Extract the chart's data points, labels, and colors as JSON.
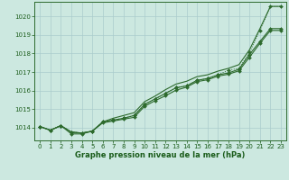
{
  "x": [
    0,
    1,
    2,
    3,
    4,
    5,
    6,
    7,
    8,
    9,
    10,
    11,
    12,
    13,
    14,
    15,
    16,
    17,
    18,
    19,
    20,
    21,
    22,
    23
  ],
  "series_upper": [
    1014.05,
    1013.85,
    1014.1,
    1013.75,
    1013.7,
    1013.8,
    1014.3,
    1014.5,
    1014.65,
    1014.8,
    1015.4,
    1015.7,
    1016.05,
    1016.35,
    1016.5,
    1016.75,
    1016.85,
    1017.05,
    1017.2,
    1017.4,
    1018.2,
    1019.35,
    1020.55,
    1020.55
  ],
  "series_mid_marked": [
    1014.05,
    1013.85,
    1014.1,
    1013.75,
    1013.7,
    1013.8,
    1014.3,
    1014.4,
    1014.5,
    1014.65,
    1015.25,
    1015.55,
    1015.85,
    1016.15,
    1016.25,
    1016.55,
    1016.65,
    1016.85,
    1016.95,
    1017.15,
    1017.95,
    1018.65,
    1019.35,
    1019.35
  ],
  "series_low_marked": [
    1014.05,
    1013.85,
    1014.1,
    1013.65,
    1013.65,
    1013.8,
    1014.25,
    1014.35,
    1014.45,
    1014.55,
    1015.15,
    1015.45,
    1015.72,
    1016.02,
    1016.18,
    1016.48,
    1016.58,
    1016.78,
    1016.88,
    1017.07,
    1017.8,
    1018.55,
    1019.25,
    1019.25
  ],
  "series_dotted": [
    1014.05,
    1013.85,
    1014.1,
    1013.75,
    1013.7,
    1013.8,
    1014.3,
    1014.4,
    1014.5,
    1014.65,
    1015.25,
    1015.55,
    1015.85,
    1016.15,
    1016.25,
    1016.55,
    1016.65,
    1016.85,
    1017.1,
    1017.2,
    1018.05,
    1019.25,
    1020.55,
    1020.55
  ],
  "line_color": "#2d6a2d",
  "bg_color": "#cce8e0",
  "grid_color": "#aacccc",
  "text_color": "#1a5c1a",
  "xlabel": "Graphe pression niveau de la mer (hPa)",
  "ylim_min": 1013.3,
  "ylim_max": 1020.8,
  "yticks": [
    1014,
    1015,
    1016,
    1017,
    1018,
    1019,
    1020
  ],
  "label_fontsize": 6.0,
  "tick_fontsize": 5.0
}
